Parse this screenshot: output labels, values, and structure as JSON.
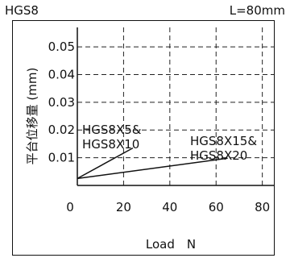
{
  "header": {
    "model": "HGS8",
    "length": "L=80mm"
  },
  "chart_data": {
    "type": "line",
    "title": "",
    "xlabel": "Load　N",
    "ylabel": "平台位移量 (mm)",
    "xlim": [
      0,
      85
    ],
    "ylim": [
      0,
      0.057
    ],
    "xticks": [
      0,
      20,
      40,
      60,
      80
    ],
    "xtick_labels": [
      "0",
      "20",
      "40",
      "60",
      "80"
    ],
    "yticks": [
      0.01,
      0.02,
      0.03,
      0.04,
      0.05
    ],
    "ytick_labels": [
      "0.01",
      "0.02",
      "0.03",
      "0.04",
      "0.05"
    ],
    "grid": true,
    "series": [
      {
        "name": "HGS8X5&\nHGS8X10",
        "x": [
          0,
          24
        ],
        "y": [
          0.0025,
          0.0135
        ]
      },
      {
        "name": "HGS8X15&\nHGS8X20",
        "x": [
          0,
          65
        ],
        "y": [
          0.0025,
          0.0098
        ]
      }
    ]
  }
}
